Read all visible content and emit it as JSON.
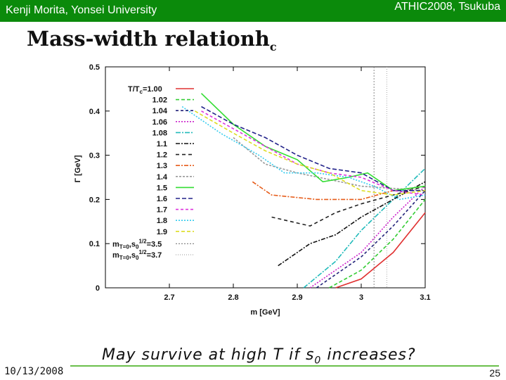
{
  "header": {
    "author": "Kenji Morita, Yonsei University",
    "conference": "ATHIC2008, Tsukuba"
  },
  "slide": {
    "title_main": "Mass-width relation",
    "title_symbol": "h",
    "title_sub": "c",
    "caption_pre": "May survive at high T if s",
    "caption_sub": "0",
    "caption_post": " increases?",
    "date": "10/13/2008",
    "page": "25"
  },
  "colors": {
    "header_bg": "#0b8a0b",
    "rule": "#6abf4b"
  },
  "chart_data": {
    "type": "line",
    "xlabel": "m [GeV]",
    "ylabel": "Γ [GeV]",
    "xlim": [
      2.6,
      3.1
    ],
    "ylim": [
      0,
      0.5
    ],
    "xticks": [
      2.7,
      2.8,
      2.9,
      3,
      3.1
    ],
    "yticks": [
      0,
      0.1,
      0.2,
      0.3,
      0.4,
      0.5
    ],
    "legend_title": "T/T",
    "legend_title_sub": "c",
    "legend_title_value": "=1.00",
    "series": [
      {
        "name": "1.00",
        "color": "#e03030",
        "dash": "",
        "x": [
          2.96,
          3.0,
          3.05,
          3.1
        ],
        "y": [
          0.0,
          0.02,
          0.08,
          0.17
        ]
      },
      {
        "name": "1.02",
        "color": "#33cc33",
        "dash": "5,3",
        "x": [
          2.95,
          3.0,
          3.05,
          3.1
        ],
        "y": [
          0.0,
          0.04,
          0.11,
          0.2
        ]
      },
      {
        "name": "1.04",
        "color": "#22227a",
        "dash": "4,3",
        "x": [
          2.93,
          3.0,
          3.05,
          3.1
        ],
        "y": [
          0.0,
          0.07,
          0.14,
          0.22
        ]
      },
      {
        "name": "1.06",
        "color": "#cc22cc",
        "dash": "2,2",
        "x": [
          2.92,
          3.0,
          3.05,
          3.1
        ],
        "y": [
          0.0,
          0.08,
          0.16,
          0.23
        ]
      },
      {
        "name": "1.08",
        "color": "#22bbbb",
        "dash": "7,2,2,2",
        "x": [
          2.91,
          2.96,
          3.0,
          3.05,
          3.1
        ],
        "y": [
          0.0,
          0.06,
          0.13,
          0.2,
          0.27
        ]
      },
      {
        "name": "1.1",
        "color": "#111111",
        "dash": "6,2,2,2",
        "x": [
          2.87,
          2.92,
          2.96,
          3.0,
          3.05,
          3.1
        ],
        "y": [
          0.05,
          0.1,
          0.12,
          0.16,
          0.2,
          0.24
        ]
      },
      {
        "name": "1.2",
        "color": "#222222",
        "dash": "5,4",
        "x": [
          2.86,
          2.89,
          2.92,
          2.96,
          3.0,
          3.05,
          3.1
        ],
        "y": [
          0.16,
          0.15,
          0.14,
          0.17,
          0.19,
          0.21,
          0.23
        ]
      },
      {
        "name": "1.3",
        "color": "#e65c1a",
        "dash": "6,2,2,2",
        "x": [
          2.83,
          2.86,
          2.93,
          3.0,
          3.05,
          3.1
        ],
        "y": [
          0.24,
          0.21,
          0.2,
          0.2,
          0.22,
          0.23
        ]
      },
      {
        "name": "1.4",
        "color": "#999999",
        "dash": "3,2",
        "x": [
          2.8,
          2.85,
          2.9,
          2.95,
          3.0,
          3.05,
          3.1
        ],
        "y": [
          0.34,
          0.28,
          0.26,
          0.245,
          0.23,
          0.225,
          0.22
        ]
      },
      {
        "name": "1.5",
        "color": "#33dd33",
        "dash": "",
        "x": [
          2.75,
          2.8,
          2.85,
          2.9,
          2.94,
          2.98,
          3.01,
          3.05,
          3.1
        ],
        "y": [
          0.44,
          0.37,
          0.32,
          0.29,
          0.24,
          0.25,
          0.26,
          0.22,
          0.23
        ]
      },
      {
        "name": "1.6",
        "color": "#22228a",
        "dash": "6,3",
        "x": [
          2.75,
          2.8,
          2.85,
          2.9,
          2.95,
          3.0,
          3.05,
          3.1
        ],
        "y": [
          0.41,
          0.37,
          0.34,
          0.3,
          0.27,
          0.26,
          0.22,
          0.22
        ]
      },
      {
        "name": "1.7",
        "color": "#dd33dd",
        "dash": "4,3",
        "x": [
          2.75,
          2.8,
          2.85,
          2.9,
          2.95,
          3.0,
          3.05,
          3.1
        ],
        "y": [
          0.4,
          0.36,
          0.32,
          0.28,
          0.26,
          0.25,
          0.22,
          0.21
        ]
      },
      {
        "name": "1.8",
        "color": "#33ccee",
        "dash": "2,2",
        "x": [
          2.72,
          2.78,
          2.84,
          2.88,
          2.93,
          2.98,
          3.02,
          3.06,
          3.1
        ],
        "y": [
          0.41,
          0.35,
          0.3,
          0.26,
          0.26,
          0.25,
          0.23,
          0.2,
          0.21
        ]
      },
      {
        "name": "1.9",
        "color": "#dddd22",
        "dash": "5,3",
        "x": [
          2.74,
          2.8,
          2.85,
          2.9,
          2.95,
          3.0,
          3.05,
          3.1
        ],
        "y": [
          0.4,
          0.35,
          0.31,
          0.28,
          0.26,
          0.22,
          0.21,
          0.22
        ]
      }
    ],
    "verticals": [
      {
        "label_pre": "m",
        "label_sub1": "T=0",
        "label_mid": ",s",
        "label_sub2": "0",
        "label_sup": "1/2",
        "label_post": "=3.5",
        "x": 3.02,
        "color": "#888888",
        "dash": "2,2"
      },
      {
        "label_pre": "m",
        "label_sub1": "T=0",
        "label_mid": ",s",
        "label_sub2": "0",
        "label_sup": "1/2",
        "label_post": "=3.7",
        "x": 3.04,
        "color": "#aaaaaa",
        "dash": "1,2"
      }
    ]
  }
}
